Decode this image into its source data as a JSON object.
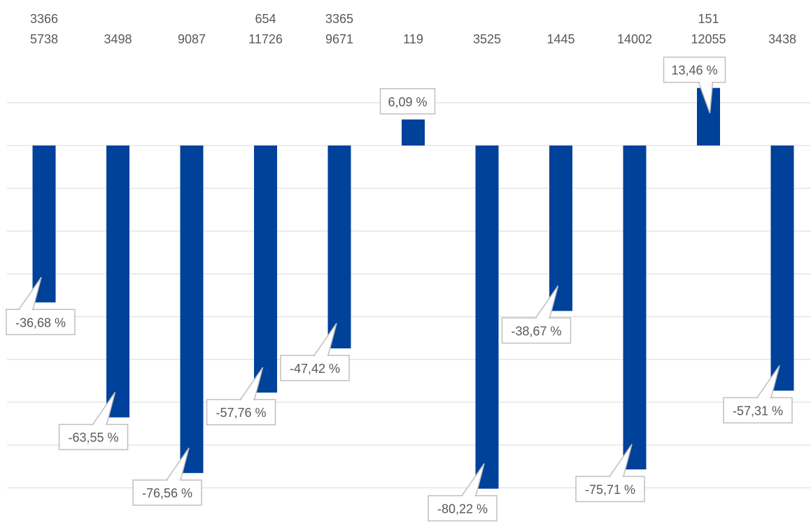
{
  "chart_data": {
    "type": "bar",
    "title": "",
    "xlabel": "",
    "ylabel": "",
    "categories": [
      [
        "3366",
        "5738"
      ],
      [
        "3498"
      ],
      [
        "9087"
      ],
      [
        "654",
        "11726"
      ],
      [
        "3365",
        "9671"
      ],
      [
        "119"
      ],
      [
        "3525"
      ],
      [
        "1445"
      ],
      [
        "14002"
      ],
      [
        "151",
        "12055"
      ],
      [
        "3438"
      ]
    ],
    "values": [
      -36.68,
      -63.55,
      -76.56,
      -57.76,
      -47.42,
      6.09,
      -80.22,
      -38.67,
      -75.71,
      13.46,
      -57.31
    ],
    "data_labels": [
      "-36,68 %",
      "-63,55 %",
      "-76,56 %",
      "-57,76 %",
      "-47,42 %",
      "6,09 %",
      "-80,22 %",
      "-38,67 %",
      "-75,71 %",
      "13,46 %",
      "-57,31 %"
    ],
    "ylim": [
      -80,
      20
    ],
    "grid": true,
    "legend": "none",
    "colors": {
      "bar": "#00419A",
      "grid": "#D9D9D9",
      "text": "#595959",
      "callout_border": "#BFBFBF"
    }
  }
}
